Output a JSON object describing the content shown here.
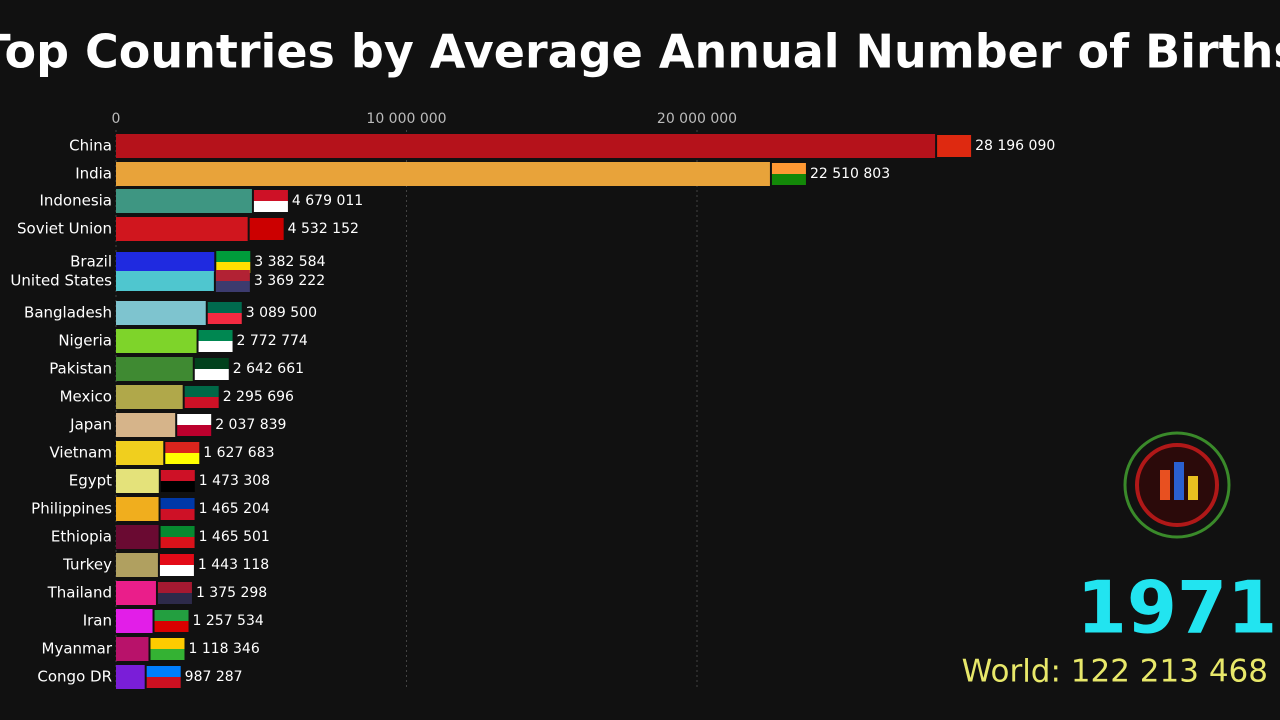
{
  "chart_data": {
    "type": "bar",
    "orientation": "horizontal",
    "title": "Top Countries by Average Annual Number of Births",
    "categories": [
      "China",
      "India",
      "Indonesia",
      "Soviet Union",
      "Brazil",
      "United States",
      "Bangladesh",
      "Nigeria",
      "Pakistan",
      "Mexico",
      "Japan",
      "Vietnam",
      "Egypt",
      "Philippines",
      "Ethiopia",
      "Turkey",
      "Thailand",
      "Iran",
      "Myanmar",
      "Congo DR"
    ],
    "values": [
      28196090,
      22510803,
      4679011,
      4532152,
      3382584,
      3369222,
      3089500,
      2772774,
      2642661,
      2295696,
      2037839,
      1627683,
      1473308,
      1465204,
      1465501,
      1443118,
      1375298,
      1257534,
      1118346,
      987287
    ],
    "value_labels": [
      "28 196 090",
      "22 510 803",
      "4 679 011",
      "4 532 152",
      "3 382 584",
      "3 369 222",
      "3 089 500",
      "2 772 774",
      "2 642 661",
      "2 295 696",
      "2 037 839",
      "1 627 683",
      "1 473 308",
      "1 465 204",
      "1 465 501",
      "1 443 118",
      "1 375 298",
      "1 257 534",
      "1 118 346",
      "987 287"
    ],
    "colors": [
      "#b5121b",
      "#e8a33a",
      "#3e9682",
      "#d0161e",
      "#1f2ae0",
      "#4fc6cf",
      "#7ec4cf",
      "#7ed42a",
      "#3f8a32",
      "#b0a84a",
      "#d6b48a",
      "#f0cf1e",
      "#e4e27a",
      "#f0ae1e",
      "#6a0a32",
      "#b0a060",
      "#ea1e8a",
      "#e21ee8",
      "#b8126a",
      "#7a1ed8"
    ],
    "flag_colors": [
      [
        "#de2910",
        "#de2910"
      ],
      [
        "#ff9933",
        "#138808"
      ],
      [
        "#ce1126",
        "#ffffff"
      ],
      [
        "#cc0000",
        "#cc0000"
      ],
      [
        "#009c3b",
        "#ffdf00"
      ],
      [
        "#b22234",
        "#3c3b6e"
      ],
      [
        "#006a4e",
        "#f42a41"
      ],
      [
        "#008751",
        "#ffffff"
      ],
      [
        "#01411c",
        "#ffffff"
      ],
      [
        "#006847",
        "#ce1126"
      ],
      [
        "#ffffff",
        "#bc002d"
      ],
      [
        "#da251d",
        "#ffff00"
      ],
      [
        "#ce1126",
        "#000000"
      ],
      [
        "#0038a8",
        "#ce1126"
      ],
      [
        "#078930",
        "#da121a"
      ],
      [
        "#e30a17",
        "#ffffff"
      ],
      [
        "#a51931",
        "#2d2a4a"
      ],
      [
        "#239f40",
        "#da0000"
      ],
      [
        "#fecb00",
        "#34b233"
      ],
      [
        "#007fff",
        "#ce1021"
      ]
    ],
    "xlim": [
      0,
      40000000
    ],
    "xticks": [
      0,
      {
        "value": 10000000,
        "label": "10 000 000"
      },
      {
        "value": 20000000,
        "label": "20 000 000"
      }
    ],
    "grid": true,
    "year_label": "1971",
    "world_label": "World: 122 213 468"
  }
}
